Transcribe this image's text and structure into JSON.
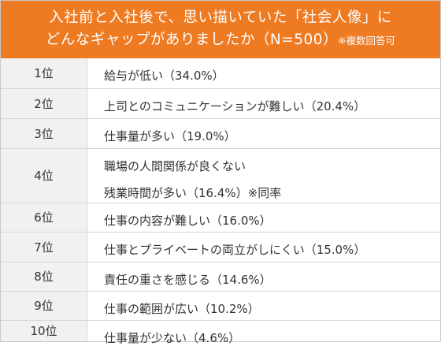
{
  "chart_data": {
    "type": "table",
    "title_line1": "入社前と入社後で、思い描いていた「社会人像」に",
    "title_line2": "どんなギャップがありましたか（N=500）",
    "title_note": "※複数回答可",
    "rows": [
      {
        "rank": "1位",
        "items": [
          {
            "text": "給与が低い",
            "pct": "（34.0%）",
            "value": 34.0
          }
        ]
      },
      {
        "rank": "2位",
        "items": [
          {
            "text": "上司とのコミュニケーションが難しい",
            "pct": "（20.4%）",
            "value": 20.4
          }
        ]
      },
      {
        "rank": "3位",
        "items": [
          {
            "text": "仕事量が多い",
            "pct": "（19.0%）",
            "value": 19.0
          }
        ]
      },
      {
        "rank": "4位",
        "items": [
          {
            "text": "職場の人間関係が良くない",
            "pct": "",
            "value": 16.4
          },
          {
            "text": "残業時間が多い",
            "pct": "（16.4%）※同率",
            "value": 16.4
          }
        ]
      },
      {
        "rank": "6位",
        "items": [
          {
            "text": "仕事の内容が難しい",
            "pct": "（16.0%）",
            "value": 16.0
          }
        ]
      },
      {
        "rank": "7位",
        "items": [
          {
            "text": "仕事とプライベートの両立がしにくい",
            "pct": "（15.0%）",
            "value": 15.0
          }
        ]
      },
      {
        "rank": "8位",
        "items": [
          {
            "text": "責任の重さを感じる",
            "pct": "（14.6%）",
            "value": 14.6
          }
        ]
      },
      {
        "rank": "9位",
        "items": [
          {
            "text": "仕事の範囲が広い",
            "pct": "（10.2%）",
            "value": 10.2
          }
        ]
      },
      {
        "rank": "10位",
        "items": [
          {
            "text": "仕事量が少ない",
            "pct": "（4.6%）",
            "value": 4.6
          }
        ]
      }
    ]
  },
  "colors": {
    "header_bg": "#ee7a22",
    "header_text": "#ffffff",
    "rank_bg": "#f1f1f1",
    "border": "#d6d6d6",
    "text": "#333333"
  }
}
